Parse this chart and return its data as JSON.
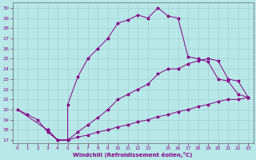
{
  "xlabel": "Windchill (Refroidissement éolien,°C)",
  "bg_color": "#b8e8e8",
  "line_color": "#880088",
  "grid_color": "#99cccc",
  "xlim": [
    -0.5,
    23.5
  ],
  "ylim": [
    16.7,
    30.5
  ],
  "yticks": [
    17,
    18,
    19,
    20,
    21,
    22,
    23,
    24,
    25,
    26,
    27,
    28,
    29,
    30
  ],
  "xticks": [
    0,
    1,
    2,
    3,
    4,
    5,
    6,
    7,
    8,
    9,
    10,
    11,
    12,
    13,
    15,
    16,
    17,
    18,
    19,
    20,
    21,
    22,
    23
  ],
  "curve_upper": [
    [
      0,
      20.0
    ],
    [
      1,
      19.5
    ],
    [
      2,
      19.0
    ],
    [
      3,
      17.8
    ],
    [
      4,
      17.0
    ],
    [
      5,
      17.0
    ],
    [
      5,
      20.5
    ],
    [
      6,
      23.2
    ],
    [
      7,
      25.0
    ],
    [
      8,
      26.0
    ],
    [
      9,
      27.0
    ],
    [
      10,
      28.5
    ],
    [
      11,
      28.8
    ],
    [
      12,
      29.3
    ],
    [
      13,
      29.0
    ],
    [
      14,
      30.0
    ],
    [
      15,
      29.2
    ],
    [
      16,
      29.0
    ],
    [
      17,
      25.2
    ],
    [
      18,
      25.0
    ],
    [
      19,
      24.7
    ],
    [
      20,
      23.0
    ],
    [
      21,
      22.8
    ],
    [
      22,
      21.5
    ],
    [
      23,
      21.2
    ]
  ],
  "curve_middle": [
    [
      3,
      18.0
    ],
    [
      4,
      17.0
    ],
    [
      5,
      17.0
    ],
    [
      6,
      17.8
    ],
    [
      7,
      18.5
    ],
    [
      8,
      19.2
    ],
    [
      9,
      20.0
    ],
    [
      10,
      21.0
    ],
    [
      11,
      21.5
    ],
    [
      12,
      22.0
    ],
    [
      13,
      22.5
    ],
    [
      14,
      23.5
    ],
    [
      15,
      24.0
    ],
    [
      16,
      24.0
    ],
    [
      17,
      24.5
    ],
    [
      18,
      24.8
    ],
    [
      19,
      25.0
    ],
    [
      20,
      24.8
    ],
    [
      21,
      23.0
    ],
    [
      22,
      22.8
    ],
    [
      23,
      21.2
    ]
  ],
  "curve_lower": [
    [
      3,
      18.0
    ],
    [
      4,
      17.0
    ],
    [
      5,
      17.0
    ],
    [
      6,
      17.3
    ],
    [
      7,
      17.5
    ],
    [
      8,
      17.8
    ],
    [
      9,
      18.0
    ],
    [
      10,
      18.3
    ],
    [
      11,
      18.5
    ],
    [
      12,
      18.8
    ],
    [
      13,
      19.0
    ],
    [
      14,
      19.3
    ],
    [
      15,
      19.5
    ],
    [
      16,
      19.8
    ],
    [
      17,
      20.0
    ],
    [
      18,
      20.3
    ],
    [
      19,
      20.5
    ],
    [
      20,
      20.8
    ],
    [
      21,
      21.0
    ],
    [
      22,
      21.0
    ],
    [
      23,
      21.2
    ]
  ]
}
